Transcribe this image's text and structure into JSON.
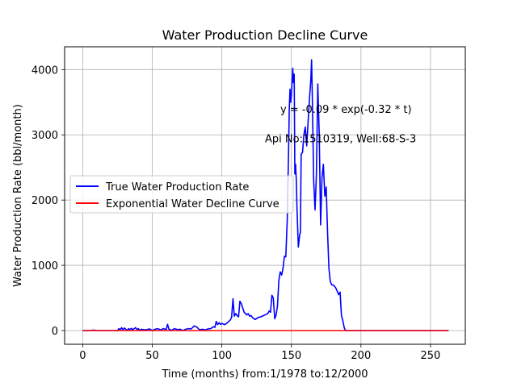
{
  "chart_data": {
    "type": "line",
    "title": "Water Production Decline Curve",
    "xlabel": "Time (months) from:1/1978 to:12/2000",
    "ylabel": "Water Production Rate (bbl/month)",
    "xlim": [
      -13,
      275
    ],
    "ylim": [
      -210,
      4350
    ],
    "xticks": [
      0,
      50,
      100,
      150,
      200,
      250
    ],
    "yticks": [
      0,
      1000,
      2000,
      3000,
      4000
    ],
    "grid": true,
    "legend_position": "center-left",
    "annotations": [
      {
        "text": "y = -0.09 * exp(-0.32 * t)",
        "x": 142,
        "y": 3400
      },
      {
        "text": "Api No:1510319, Well:68-S-3",
        "x": 131,
        "y": 2950
      }
    ],
    "series": [
      {
        "name": "True Water Production Rate",
        "color": "#0000ff",
        "points": [
          [
            0,
            0
          ],
          [
            5,
            0
          ],
          [
            8,
            8
          ],
          [
            10,
            0
          ],
          [
            15,
            0
          ],
          [
            20,
            0
          ],
          [
            25,
            0
          ],
          [
            26,
            30
          ],
          [
            27,
            15
          ],
          [
            28,
            45
          ],
          [
            29,
            10
          ],
          [
            30,
            40
          ],
          [
            31,
            20
          ],
          [
            32,
            0
          ],
          [
            33,
            30
          ],
          [
            34,
            15
          ],
          [
            35,
            35
          ],
          [
            36,
            10
          ],
          [
            37,
            30
          ],
          [
            38,
            45
          ],
          [
            39,
            15
          ],
          [
            40,
            30
          ],
          [
            41,
            0
          ],
          [
            42,
            20
          ],
          [
            45,
            10
          ],
          [
            48,
            25
          ],
          [
            50,
            0
          ],
          [
            52,
            20
          ],
          [
            54,
            30
          ],
          [
            56,
            10
          ],
          [
            58,
            30
          ],
          [
            60,
            15
          ],
          [
            61,
            95
          ],
          [
            62,
            20
          ],
          [
            64,
            5
          ],
          [
            66,
            30
          ],
          [
            68,
            15
          ],
          [
            70,
            20
          ],
          [
            72,
            0
          ],
          [
            74,
            20
          ],
          [
            76,
            30
          ],
          [
            78,
            25
          ],
          [
            80,
            70
          ],
          [
            82,
            55
          ],
          [
            84,
            10
          ],
          [
            86,
            20
          ],
          [
            88,
            10
          ],
          [
            90,
            25
          ],
          [
            92,
            30
          ],
          [
            94,
            60
          ],
          [
            95,
            50
          ],
          [
            96,
            140
          ],
          [
            97,
            90
          ],
          [
            98,
            120
          ],
          [
            99,
            95
          ],
          [
            100,
            110
          ],
          [
            102,
            90
          ],
          [
            104,
            120
          ],
          [
            106,
            160
          ],
          [
            107,
            200
          ],
          [
            108,
            490
          ],
          [
            109,
            220
          ],
          [
            110,
            260
          ],
          [
            111,
            230
          ],
          [
            112,
            210
          ],
          [
            113,
            450
          ],
          [
            114,
            410
          ],
          [
            115,
            350
          ],
          [
            116,
            280
          ],
          [
            117,
            260
          ],
          [
            118,
            240
          ],
          [
            119,
            260
          ],
          [
            120,
            220
          ],
          [
            121,
            230
          ],
          [
            122,
            200
          ],
          [
            124,
            170
          ],
          [
            126,
            200
          ],
          [
            128,
            210
          ],
          [
            130,
            230
          ],
          [
            132,
            250
          ],
          [
            133,
            260
          ],
          [
            134,
            300
          ],
          [
            135,
            280
          ],
          [
            136,
            540
          ],
          [
            137,
            500
          ],
          [
            138,
            180
          ],
          [
            139,
            240
          ],
          [
            140,
            380
          ],
          [
            141,
            770
          ],
          [
            142,
            900
          ],
          [
            143,
            850
          ],
          [
            144,
            960
          ],
          [
            145,
            1140
          ],
          [
            146,
            1130
          ],
          [
            147,
            1700
          ],
          [
            148,
            2800
          ],
          [
            148.5,
            3400
          ],
          [
            149,
            3700
          ],
          [
            149.5,
            3500
          ],
          [
            150,
            3600
          ],
          [
            151,
            4020
          ],
          [
            151.5,
            3800
          ],
          [
            152,
            3930
          ],
          [
            152.5,
            2400
          ],
          [
            153,
            2550
          ],
          [
            153.5,
            2300
          ],
          [
            154,
            1900
          ],
          [
            155,
            1280
          ],
          [
            156,
            1480
          ],
          [
            156.5,
            1500
          ],
          [
            157,
            2700
          ],
          [
            158,
            2730
          ],
          [
            159,
            3000
          ],
          [
            160,
            3120
          ],
          [
            161,
            2830
          ],
          [
            162,
            3200
          ],
          [
            163,
            3550
          ],
          [
            164,
            3850
          ],
          [
            164.5,
            4150
          ],
          [
            165,
            3600
          ],
          [
            166,
            2300
          ],
          [
            167,
            1850
          ],
          [
            168,
            2400
          ],
          [
            169,
            3780
          ],
          [
            170,
            3000
          ],
          [
            171,
            1620
          ],
          [
            172,
            2350
          ],
          [
            173,
            2550
          ],
          [
            174,
            2060
          ],
          [
            175,
            2200
          ],
          [
            176,
            1500
          ],
          [
            177,
            950
          ],
          [
            178,
            750
          ],
          [
            179,
            700
          ],
          [
            180,
            700
          ],
          [
            181,
            680
          ],
          [
            182,
            650
          ],
          [
            183,
            600
          ],
          [
            184,
            550
          ],
          [
            185,
            590
          ],
          [
            186,
            230
          ],
          [
            187,
            150
          ],
          [
            188,
            40
          ],
          [
            189,
            0
          ],
          [
            190,
            0
          ],
          [
            200,
            0
          ],
          [
            220,
            0
          ],
          [
            240,
            0
          ],
          [
            263,
            0
          ]
        ]
      },
      {
        "name": "Exponential Water Decline Curve",
        "color": "#ff0000",
        "points": [
          [
            0,
            -0.09
          ],
          [
            263,
            0
          ]
        ]
      }
    ]
  }
}
